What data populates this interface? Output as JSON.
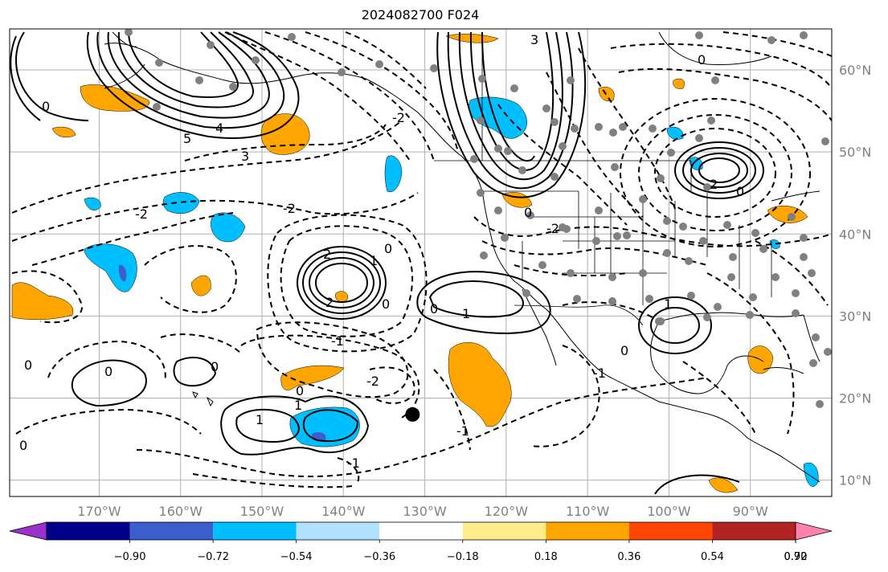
{
  "title": "2024082700 F024",
  "map": {
    "projection": "PlateCarree",
    "extent": {
      "lon_min": -181,
      "lon_max": -80,
      "lat_min": 8,
      "lat_max": 65
    },
    "gridlines": true,
    "marker": {
      "lon": -131.5,
      "lat": 18,
      "color": "#000000"
    },
    "station_dot_color": "#808080",
    "contour_style": "black solid positive, dashed negative",
    "lon_ticks": [
      {
        "value": -170,
        "label": "170°W"
      },
      {
        "value": -160,
        "label": "160°W"
      },
      {
        "value": -150,
        "label": "150°W"
      },
      {
        "value": -140,
        "label": "140°W"
      },
      {
        "value": -130,
        "label": "130°W"
      },
      {
        "value": -120,
        "label": "120°W"
      },
      {
        "value": -110,
        "label": "110°W"
      },
      {
        "value": -100,
        "label": "100°W"
      },
      {
        "value": -90,
        "label": "90°W"
      }
    ],
    "lat_ticks": [
      {
        "value": 60,
        "label": "60°N"
      },
      {
        "value": 50,
        "label": "50°N"
      },
      {
        "value": 40,
        "label": "40°N"
      },
      {
        "value": 30,
        "label": "30°N"
      },
      {
        "value": 20,
        "label": "20°N"
      },
      {
        "value": 10,
        "label": "10°N"
      }
    ],
    "contour_labels": [
      "-1",
      "-2",
      "0",
      "1",
      "2",
      "3",
      "4",
      "5"
    ]
  },
  "colorbar": {
    "colors": [
      "#9932cc",
      "#00008b",
      "#3a5fcd",
      "#00bfff",
      "#b0e2ff",
      "#ffffff",
      "#ffec8b",
      "#ffa500",
      "#ff4500",
      "#b22222",
      "#ff82ab"
    ],
    "labels": [
      "−0.90",
      "−0.72",
      "−0.54",
      "−0.36",
      "−0.18",
      "0.18",
      "0.36",
      "0.54",
      "0.72",
      "0.90"
    ]
  }
}
